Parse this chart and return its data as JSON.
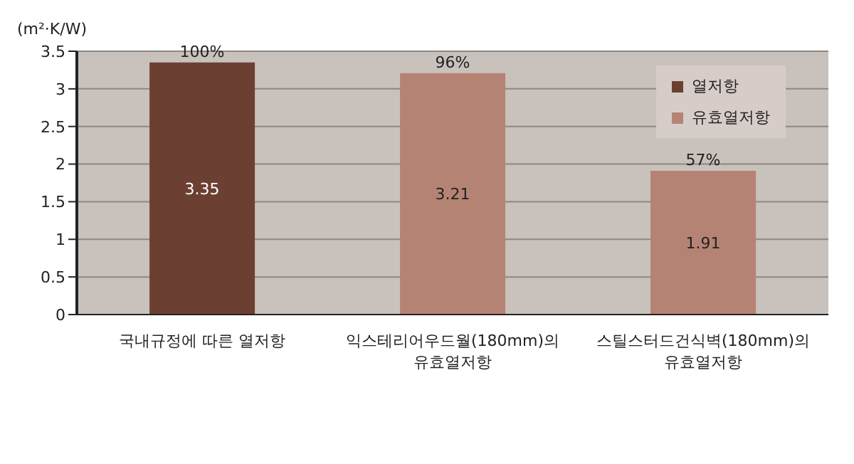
{
  "chart_data": {
    "type": "bar",
    "ylabel": "(m²·K/W)",
    "categories": [
      "국내규정에 따른 열저항",
      "익스테리어우드월(180mm)의 유효열저항",
      "스틸스터드건식벽(180mm)의 유효열저항"
    ],
    "series": [
      {
        "name": "열저항",
        "color": "#6b4032",
        "values": [
          3.35,
          null,
          null
        ]
      },
      {
        "name": "유효열저항",
        "color": "#b58374",
        "values": [
          null,
          3.21,
          1.91
        ]
      }
    ],
    "annotations": [
      {
        "text": "100%",
        "x": "국내규정에 따른 열저항",
        "y": 3.35
      },
      {
        "text": "96%",
        "x": "익스테리어우드월(180mm)의 유효열저항",
        "y": 3.21
      },
      {
        "text": "57%",
        "x": "스틸스터드건식벽(180mm)의 유효열저항",
        "y": 1.91
      }
    ],
    "stacked": true,
    "data_labels": true,
    "ylim": [
      0,
      3.5
    ],
    "yticks": [
      0,
      0.5,
      1,
      1.5,
      2,
      2.5,
      3,
      3.5
    ],
    "grid": "y",
    "legend": "top right"
  }
}
